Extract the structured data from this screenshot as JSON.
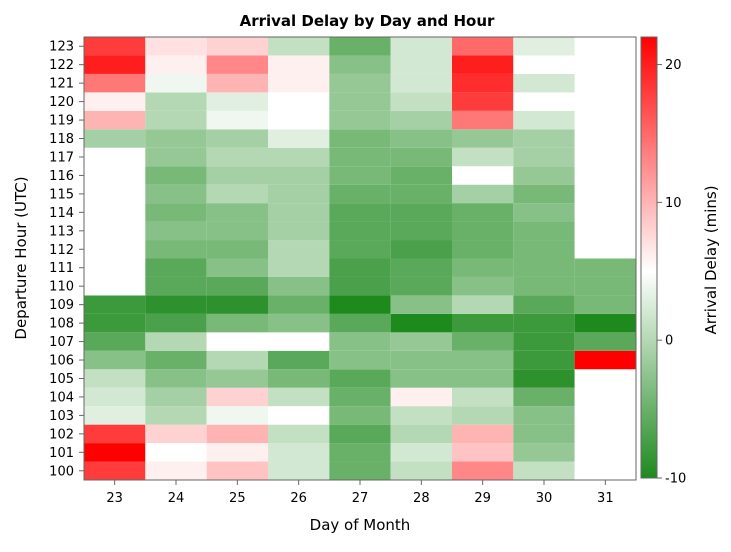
{
  "chart_data": {
    "type": "heatmap",
    "title": "Arrival Delay by Day and Hour",
    "xlabel": "Day of Month",
    "ylabel": "Departure Hour (UTC)",
    "x": [
      "23",
      "24",
      "25",
      "26",
      "27",
      "28",
      "29",
      "30",
      "31"
    ],
    "y": [
      "100",
      "101",
      "102",
      "103",
      "104",
      "105",
      "106",
      "107",
      "108",
      "109",
      "110",
      "111",
      "112",
      "113",
      "114",
      "115",
      "116",
      "117",
      "118",
      "119",
      "120",
      "121",
      "122",
      "123"
    ],
    "values": [
      [
        18,
        6,
        9,
        2,
        -5,
        1,
        13,
        1,
        null
      ],
      [
        22,
        5,
        6,
        2,
        -5,
        2,
        9,
        -2,
        null
      ],
      [
        18,
        8,
        10,
        1,
        -6,
        0,
        10,
        -3,
        null
      ],
      [
        3,
        0,
        4,
        5,
        -4,
        1,
        0,
        -3,
        null
      ],
      [
        2,
        -1,
        8,
        1,
        -5,
        6,
        1,
        -5,
        null
      ],
      [
        1,
        -3,
        -2,
        -4,
        -6,
        -3,
        -3,
        -9,
        null
      ],
      [
        -3,
        -5,
        0,
        -6,
        -3,
        -3,
        -3,
        -8,
        22
      ],
      [
        -6,
        0,
        5,
        5,
        -3,
        -2,
        -5,
        -8,
        -6
      ],
      [
        -8,
        -7,
        -4,
        -3,
        -6,
        -10,
        -8,
        -8,
        -10
      ],
      [
        -8,
        -9,
        -9,
        -5,
        -10,
        -3,
        0,
        -6,
        -4
      ],
      [
        null,
        -6,
        -6,
        -3,
        -7,
        -6,
        -3,
        -4,
        -4
      ],
      [
        null,
        -6,
        -3,
        0,
        -7,
        -6,
        -4,
        -4,
        -4
      ],
      [
        null,
        -4,
        -4,
        0,
        -6,
        -7,
        -5,
        -4,
        null
      ],
      [
        null,
        -3,
        -3,
        -1,
        -6,
        -6,
        -5,
        -4,
        null
      ],
      [
        null,
        -4,
        -3,
        -1,
        -6,
        -6,
        -5,
        -3,
        null
      ],
      [
        null,
        -3,
        0,
        -1,
        -5,
        -5,
        -1,
        -4,
        null
      ],
      [
        null,
        -4,
        -1,
        -1,
        -4,
        -5,
        5,
        -2,
        null
      ],
      [
        null,
        -2,
        0,
        0,
        -4,
        -4,
        1,
        -1,
        null
      ],
      [
        -1,
        -2,
        -1,
        3,
        -4,
        -3,
        -2,
        -1,
        null
      ],
      [
        10,
        0,
        4,
        5,
        -2,
        -1,
        14,
        2,
        null
      ],
      [
        6,
        0,
        3,
        5,
        -2,
        1,
        18,
        5,
        null
      ],
      [
        14,
        4,
        10,
        6,
        -2,
        2,
        19,
        2,
        null
      ],
      [
        20,
        6,
        13,
        6,
        -3,
        2,
        20,
        5,
        null
      ],
      [
        18,
        7,
        8,
        1,
        -5,
        2,
        15,
        3,
        null
      ]
    ],
    "colorbar": {
      "label": "Arrival Delay (mins)",
      "range": [
        -10,
        22
      ],
      "ticks": [
        "-10",
        "0",
        "10",
        "20"
      ],
      "tick_values": [
        -10,
        0,
        10,
        20
      ],
      "low_color": "#1e8a1e",
      "mid_color": "#ffffff",
      "high_color": "#ff0000",
      "mid_value": 5,
      "missing_color": "#ffffff"
    },
    "grid": false
  }
}
